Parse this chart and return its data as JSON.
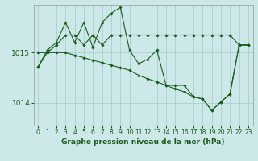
{
  "background_color": "#cde8e8",
  "grid_color": "#aacfcf",
  "line_color": "#1a5c1a",
  "xlabel": "Graphe pression niveau de la mer (hPa)",
  "xlabel_fontsize": 6.5,
  "ylabel_fontsize": 6.5,
  "tick_fontsize": 5.5,
  "xlim": [
    -0.5,
    23.5
  ],
  "ylim": [
    1013.55,
    1015.95
  ],
  "yticks": [
    1014,
    1015
  ],
  "xticks": [
    0,
    1,
    2,
    3,
    4,
    5,
    6,
    7,
    8,
    9,
    10,
    11,
    12,
    13,
    14,
    15,
    16,
    17,
    18,
    19,
    20,
    21,
    22,
    23
  ],
  "s1_y": [
    1014.72,
    1015.0,
    1015.15,
    1015.35,
    1015.35,
    1015.15,
    1015.35,
    1015.15,
    1015.35,
    1015.35,
    1015.35,
    1015.35,
    1015.35,
    1015.35,
    1015.35,
    1015.35,
    1015.35,
    1015.35,
    1015.35,
    1015.35,
    1015.35,
    1015.35,
    1015.15,
    1015.15
  ],
  "s2_y": [
    1014.72,
    1015.05,
    1015.2,
    1015.6,
    1015.2,
    1015.6,
    1015.1,
    1015.6,
    1015.78,
    1015.9,
    1015.05,
    1014.78,
    1014.87,
    1015.05,
    1014.35,
    1014.35,
    1014.35,
    1014.12,
    1014.08,
    1013.85,
    1014.02,
    1014.18,
    1015.15,
    1015.15
  ],
  "s3_y": [
    1015.0,
    1015.0,
    1015.0,
    1015.0,
    1014.95,
    1014.9,
    1014.85,
    1014.8,
    1014.75,
    1014.7,
    1014.65,
    1014.55,
    1014.48,
    1014.42,
    1014.35,
    1014.28,
    1014.22,
    1014.12,
    1014.08,
    1013.85,
    1014.02,
    1014.18,
    1015.15,
    1015.15
  ]
}
